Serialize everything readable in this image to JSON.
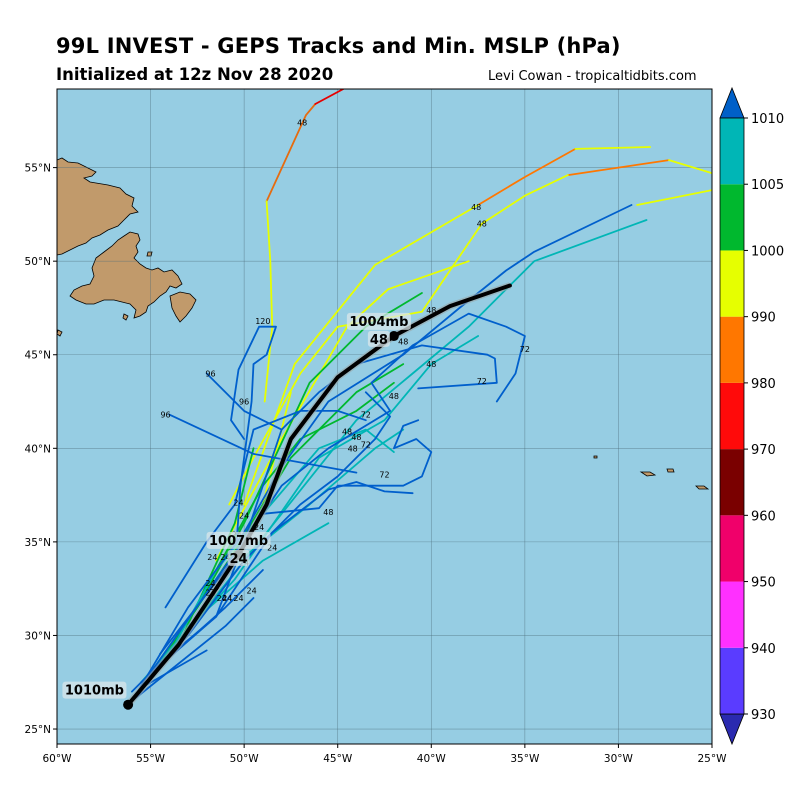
{
  "header": {
    "title": "99L INVEST - GEPS Tracks and Min. MSLP (hPa)",
    "subtitle": "Initialized at 12z Nov 28 2020",
    "credit": "Levi Cowan - tropicaltidbits.com"
  },
  "map": {
    "lon_range": [
      -60,
      -25
    ],
    "lat_range": [
      24.2,
      59.2
    ],
    "ocean_color": "#96cde3",
    "land_color": "#c19a6b",
    "lon_ticks": [
      {
        "v": -60,
        "label": "60°W"
      },
      {
        "v": -55,
        "label": "55°W"
      },
      {
        "v": -50,
        "label": "50°W"
      },
      {
        "v": -45,
        "label": "45°W"
      },
      {
        "v": -40,
        "label": "40°W"
      },
      {
        "v": -35,
        "label": "35°W"
      },
      {
        "v": -30,
        "label": "30°W"
      },
      {
        "v": -25,
        "label": "25°W"
      }
    ],
    "lat_ticks": [
      {
        "v": 25,
        "label": "25°N"
      },
      {
        "v": 30,
        "label": "30°N"
      },
      {
        "v": 35,
        "label": "35°N"
      },
      {
        "v": 40,
        "label": "40°N"
      },
      {
        "v": 45,
        "label": "45°N"
      },
      {
        "v": 50,
        "label": "50°N"
      },
      {
        "v": 55,
        "label": "55°N"
      }
    ]
  },
  "colorbar": {
    "levels": [
      {
        "value": 930,
        "color": "#5a3cff"
      },
      {
        "value": 940,
        "color": "#ff30ff"
      },
      {
        "value": 950,
        "color": "#f0006a"
      },
      {
        "value": 960,
        "color": "#7a0000"
      },
      {
        "value": 970,
        "color": "#ff0a0a"
      },
      {
        "value": 980,
        "color": "#ff7700"
      },
      {
        "value": 990,
        "color": "#e6ff00"
      },
      {
        "value": 1000,
        "color": "#00b82e"
      },
      {
        "value": 1005,
        "color": "#00b6b6"
      },
      {
        "value": 1010,
        "color": "#005fcc"
      }
    ],
    "under_color": "#2a2ab0",
    "over_color": "#0060c8",
    "labels": [
      "930",
      "940",
      "950",
      "960",
      "970",
      "980",
      "990",
      "1000",
      "1005",
      "1010"
    ]
  },
  "chart_data": {
    "type": "track-map",
    "ensemble_tracks": [
      {
        "color": "#e66b0f",
        "points": [
          [
            -48.8,
            53.2
          ],
          [
            -46.7,
            57.8
          ],
          [
            -46.2,
            58.4
          ]
        ]
      },
      {
        "color": "#e60000",
        "points": [
          [
            -46.2,
            58.4
          ],
          [
            -44.7,
            59.2
          ]
        ]
      },
      {
        "color": "#e6ff00",
        "points": [
          [
            -48.8,
            53.2
          ],
          [
            -48.6,
            50.0
          ],
          [
            -48.5,
            46.5
          ],
          [
            -48.9,
            42.5
          ]
        ]
      },
      {
        "color": "#ff7700",
        "points": [
          [
            -37.5,
            53.0
          ],
          [
            -35,
            54.5
          ],
          [
            -32.3,
            56.0
          ]
        ]
      },
      {
        "color": "#e6ff00",
        "points": [
          [
            -32.3,
            56.0
          ],
          [
            -28.3,
            56.1
          ]
        ]
      },
      {
        "color": "#ff7700",
        "points": [
          [
            -32.7,
            54.6
          ],
          [
            -27.3,
            55.4
          ]
        ]
      },
      {
        "color": "#e6ff00",
        "points": [
          [
            -27.3,
            55.4
          ],
          [
            -25,
            54.7
          ]
        ]
      },
      {
        "color": "#e6ff00",
        "points": [
          [
            -50.8,
            37.0
          ],
          [
            -49.5,
            39.5
          ],
          [
            -47.0,
            44.0
          ],
          [
            -45.0,
            46.5
          ],
          [
            -40.5,
            47.3
          ],
          [
            -37.3,
            52.0
          ],
          [
            -35.0,
            53.5
          ],
          [
            -32.7,
            54.6
          ]
        ]
      },
      {
        "color": "#e6ff00",
        "points": [
          [
            -51.5,
            34.0
          ],
          [
            -48.0,
            40.5
          ],
          [
            -44.5,
            46.5
          ],
          [
            -42.3,
            48.5
          ],
          [
            -38.0,
            50.0
          ]
        ]
      },
      {
        "color": "#e6ff00",
        "points": [
          [
            -49.0,
            37.0
          ],
          [
            -47.5,
            43.0
          ]
        ]
      },
      {
        "color": "#e6ff00",
        "points": [
          [
            -29.0,
            53.0
          ],
          [
            -25.0,
            53.8
          ]
        ]
      },
      {
        "color": "#e6ff00",
        "points": [
          [
            -50.0,
            37.0
          ],
          [
            -47.3,
            44.5
          ],
          [
            -43.0,
            49.8
          ],
          [
            -37.5,
            53.0
          ]
        ]
      },
      {
        "color": "#00b82e",
        "points": [
          [
            -55.0,
            28.0
          ],
          [
            -52.5,
            31.5
          ],
          [
            -50.0,
            36.0
          ],
          [
            -46.5,
            43.5
          ],
          [
            -43.5,
            46.5
          ],
          [
            -40.5,
            48.3
          ]
        ]
      },
      {
        "color": "#00b82e",
        "points": [
          [
            -54.5,
            28.5
          ],
          [
            -50.5,
            34.5
          ],
          [
            -47.5,
            39.5
          ],
          [
            -44.0,
            43.0
          ],
          [
            -41.5,
            44.5
          ]
        ]
      },
      {
        "color": "#00b82e",
        "points": [
          [
            -53.5,
            29.5
          ],
          [
            -50.5,
            36.0
          ],
          [
            -49.5,
            40.0
          ]
        ]
      },
      {
        "color": "#00b82e",
        "points": [
          [
            -51.5,
            33.5
          ],
          [
            -49.0,
            38.0
          ],
          [
            -47.0,
            40.5
          ],
          [
            -44.0,
            42.0
          ],
          [
            -42.0,
            43.5
          ]
        ]
      },
      {
        "color": "#00b6b6",
        "points": [
          [
            -55.5,
            27.5
          ],
          [
            -52.0,
            31.5
          ],
          [
            -48.0,
            36.5
          ],
          [
            -44.0,
            41.5
          ],
          [
            -41.0,
            44.0
          ],
          [
            -38.0,
            46.5
          ],
          [
            -34.5,
            50.0
          ],
          [
            -28.5,
            52.2
          ]
        ]
      },
      {
        "color": "#00b6b6",
        "points": [
          [
            -55.0,
            28.0
          ],
          [
            -51.5,
            33.0
          ],
          [
            -46.5,
            37.0
          ],
          [
            -43.0,
            40.0
          ],
          [
            -41.5,
            41.0
          ]
        ]
      },
      {
        "color": "#00b6b6",
        "points": [
          [
            -54.8,
            28.3
          ],
          [
            -50.5,
            33.0
          ],
          [
            -46.0,
            39.5
          ],
          [
            -42.5,
            41.5
          ],
          [
            -40.0,
            44.5
          ],
          [
            -37.5,
            46.0
          ]
        ]
      },
      {
        "color": "#00b6b6",
        "points": [
          [
            -54.0,
            29.0
          ],
          [
            -51.5,
            33.5
          ],
          [
            -49.0,
            36.5
          ],
          [
            -46.0,
            40.0
          ],
          [
            -43.5,
            41.0
          ],
          [
            -42.0,
            39.8
          ]
        ]
      },
      {
        "color": "#00b6b6",
        "points": [
          [
            -53.0,
            30.5
          ],
          [
            -49.0,
            34.0
          ],
          [
            -45.5,
            36.0
          ]
        ]
      },
      {
        "color": "#005fcc",
        "points": [
          [
            -56.0,
            27.0
          ],
          [
            -53.0,
            30.0
          ],
          [
            -50.0,
            34.0
          ],
          [
            -47.0,
            37.0
          ],
          [
            -45.0,
            38.5
          ],
          [
            -43.0,
            40.5
          ],
          [
            -42.2,
            41.7
          ],
          [
            -43.5,
            43.0
          ]
        ]
      },
      {
        "color": "#005fcc",
        "points": [
          [
            -55.5,
            27.5
          ],
          [
            -51.0,
            31.5
          ],
          [
            -49.0,
            33.5
          ]
        ]
      },
      {
        "color": "#005fcc",
        "points": [
          [
            -55.0,
            28.0
          ],
          [
            -51.5,
            33.0
          ],
          [
            -49.0,
            36.5
          ],
          [
            -46.0,
            36.8
          ],
          [
            -45.0,
            38.0
          ],
          [
            -41.5,
            38.0
          ],
          [
            -40.5,
            38.5
          ],
          [
            -40.0,
            39.8
          ],
          [
            -40.8,
            40.5
          ],
          [
            -42.0,
            40.0
          ],
          [
            -41.5,
            41.2
          ],
          [
            -40.7,
            41.5
          ]
        ]
      },
      {
        "color": "#005fcc",
        "points": [
          [
            -55.3,
            27.7
          ],
          [
            -51.5,
            31.0
          ],
          [
            -48.5,
            35.5
          ],
          [
            -45.5,
            37.8
          ],
          [
            -44.0,
            38.2
          ],
          [
            -42.5,
            37.7
          ],
          [
            -41.0,
            37.6
          ]
        ]
      },
      {
        "color": "#005fcc",
        "points": [
          [
            -54.5,
            29.0
          ],
          [
            -51.0,
            33.5
          ],
          [
            -49.0,
            36.5
          ],
          [
            -48.0,
            38.0
          ],
          [
            -45.5,
            40.0
          ],
          [
            -42.2,
            42.0
          ],
          [
            -43.2,
            43.5
          ],
          [
            -41.0,
            45.5
          ],
          [
            -38.0,
            47.2
          ],
          [
            -36.0,
            46.5
          ],
          [
            -35.0,
            46.0
          ],
          [
            -35.5,
            44.0
          ],
          [
            -36.5,
            42.5
          ]
        ]
      },
      {
        "color": "#005fcc",
        "points": [
          [
            -54.5,
            28.5
          ],
          [
            -51.5,
            31.0
          ],
          [
            -50.0,
            35.0
          ],
          [
            -48.0,
            41.0
          ],
          [
            -46.0,
            43.0
          ],
          [
            -44.0,
            44.5
          ],
          [
            -40.5,
            45.5
          ],
          [
            -37.0,
            45.0
          ],
          [
            -36.6,
            44.8
          ],
          [
            -36.5,
            43.5
          ],
          [
            -40.7,
            43.2
          ]
        ]
      },
      {
        "color": "#005fcc",
        "points": [
          [
            -56.0,
            26.5
          ],
          [
            -51.0,
            30.5
          ],
          [
            -49.5,
            32.0
          ]
        ]
      },
      {
        "color": "#005fcc",
        "points": [
          [
            -55.8,
            26.8
          ],
          [
            -53.0,
            31.5
          ],
          [
            -50.0,
            35.5
          ],
          [
            -48.0,
            39.0
          ],
          [
            -45.5,
            42.5
          ],
          [
            -41.5,
            45.0
          ],
          [
            -38.5,
            47.5
          ],
          [
            -36.0,
            49.5
          ],
          [
            -34.5,
            50.5
          ],
          [
            -29.3,
            53.0
          ]
        ]
      },
      {
        "color": "#005fcc",
        "points": [
          [
            -55.5,
            27.2
          ],
          [
            -52.0,
            29.2
          ]
        ]
      },
      {
        "color": "#005fcc",
        "points": [
          [
            -54.2,
            31.5
          ],
          [
            -52.0,
            35.0
          ],
          [
            -50.5,
            37.0
          ],
          [
            -49.5,
            41.0
          ],
          [
            -47.0,
            42.0
          ],
          [
            -45.0,
            42.0
          ],
          [
            -43.5,
            41.5
          ]
        ]
      },
      {
        "color": "#005fcc",
        "points": [
          [
            -50.4,
            35.0
          ],
          [
            -50.2,
            38.0
          ],
          [
            -49.6,
            42.5
          ],
          [
            -49.5,
            44.5
          ],
          [
            -48.8,
            45.0
          ],
          [
            -48.3,
            46.5
          ],
          [
            -49.2,
            46.5
          ],
          [
            -50.3,
            44.2
          ],
          [
            -50.7,
            41.5
          ],
          [
            -50.0,
            40.5
          ]
        ]
      },
      {
        "color": "#005fcc",
        "points": [
          [
            -54.0,
            41.8
          ],
          [
            -49.5,
            39.7
          ],
          [
            -44.0,
            38.7
          ]
        ]
      },
      {
        "color": "#005fcc",
        "points": [
          [
            -52.0,
            44.0
          ],
          [
            -50.0,
            42.0
          ],
          [
            -48.0,
            41.0
          ]
        ]
      }
    ],
    "mean_track": {
      "color": "#000000",
      "points": [
        [
          -56.2,
          26.3
        ],
        [
          -53.5,
          29.5
        ],
        [
          -51.5,
          32.5
        ],
        [
          -50.3,
          34.3
        ],
        [
          -48.8,
          37.0
        ],
        [
          -47.5,
          40.5
        ],
        [
          -45.0,
          43.8
        ],
        [
          -42.0,
          46.0
        ],
        [
          -39.0,
          47.6
        ],
        [
          -35.8,
          48.7
        ]
      ]
    },
    "mean_markers": [
      {
        "point": [
          -56.2,
          26.3
        ],
        "label": "1010mb",
        "label_offset_lon": -1.8,
        "label_offset_lat": 0.7
      },
      {
        "point": [
          -50.3,
          34.3
        ],
        "label": "1007mb",
        "sub": "24",
        "label_offset_lon": 0.0,
        "label_offset_lat": 0.7
      },
      {
        "point": [
          -42.0,
          46.0
        ],
        "label": "1004mb",
        "sub": "48",
        "label_offset_lon": -0.8,
        "label_offset_lat": 0.7
      }
    ],
    "hour_labels": [
      {
        "text": "48",
        "lon": -46.9,
        "lat": 57.4
      },
      {
        "text": "48",
        "lon": -37.6,
        "lat": 52.9
      },
      {
        "text": "48",
        "lon": -37.3,
        "lat": 52.0
      },
      {
        "text": "48",
        "lon": -40.0,
        "lat": 47.4
      },
      {
        "text": "48",
        "lon": -41.5,
        "lat": 45.7
      },
      {
        "text": "48",
        "lon": -40.0,
        "lat": 44.5
      },
      {
        "text": "48",
        "lon": -42.0,
        "lat": 42.8
      },
      {
        "text": "48",
        "lon": -44.5,
        "lat": 40.9
      },
      {
        "text": "48",
        "lon": -44.0,
        "lat": 40.6
      },
      {
        "text": "48",
        "lon": -44.2,
        "lat": 40.0
      },
      {
        "text": "48",
        "lon": -45.5,
        "lat": 36.6
      },
      {
        "text": "72",
        "lon": -35.0,
        "lat": 45.3
      },
      {
        "text": "72",
        "lon": -37.3,
        "lat": 43.6
      },
      {
        "text": "72",
        "lon": -43.5,
        "lat": 41.8
      },
      {
        "text": "72",
        "lon": -43.5,
        "lat": 40.2
      },
      {
        "text": "72",
        "lon": -42.5,
        "lat": 38.6
      },
      {
        "text": "96",
        "lon": -51.8,
        "lat": 44.0
      },
      {
        "text": "96",
        "lon": -50.0,
        "lat": 42.5
      },
      {
        "text": "96",
        "lon": -54.2,
        "lat": 41.8
      },
      {
        "text": "120",
        "lon": -49.0,
        "lat": 46.8
      },
      {
        "text": "24",
        "lon": -50.3,
        "lat": 37.1
      },
      {
        "text": "24",
        "lon": -50.0,
        "lat": 36.4
      },
      {
        "text": "24",
        "lon": -50.4,
        "lat": 35.4
      },
      {
        "text": "24",
        "lon": -49.2,
        "lat": 35.8
      },
      {
        "text": "24",
        "lon": -48.5,
        "lat": 34.7
      },
      {
        "text": "24",
        "lon": -51.7,
        "lat": 34.2
      },
      {
        "text": "24",
        "lon": -51.0,
        "lat": 34.2
      },
      {
        "text": "24",
        "lon": -50.0,
        "lat": 33.9
      },
      {
        "text": "24",
        "lon": -51.8,
        "lat": 32.8
      },
      {
        "text": "24",
        "lon": -51.6,
        "lat": 32.6
      },
      {
        "text": "24",
        "lon": -51.8,
        "lat": 32.3
      },
      {
        "text": "24",
        "lon": -49.6,
        "lat": 32.4
      },
      {
        "text": "24",
        "lon": -50.3,
        "lat": 32.0
      },
      {
        "text": "24",
        "lon": -50.9,
        "lat": 32.0
      },
      {
        "text": "24",
        "lon": -51.2,
        "lat": 32.0
      }
    ]
  }
}
